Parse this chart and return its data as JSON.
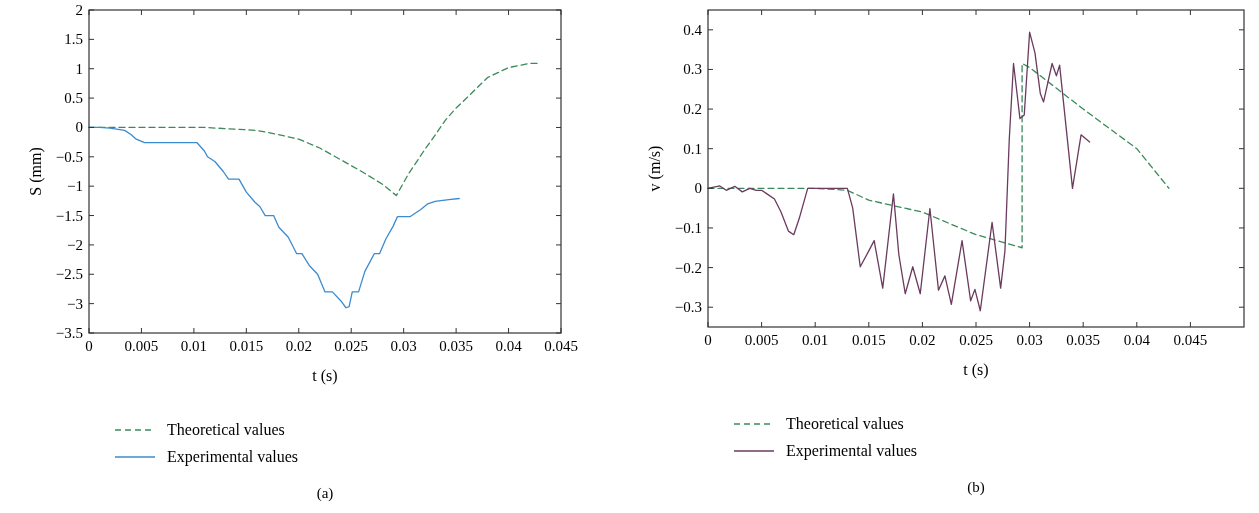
{
  "chart_data": [
    {
      "type": "line",
      "xlabel": "t (s)",
      "ylabel": "S (mm)",
      "xlim": [
        0,
        0.045
      ],
      "xticks": [
        0,
        0.005,
        0.01,
        0.015,
        0.02,
        0.025,
        0.03,
        0.035,
        0.04,
        0.045
      ],
      "ylim": [
        -3.5,
        2
      ],
      "yticks": [
        -3.5,
        -3,
        -2.5,
        -2,
        -1.5,
        -1,
        -0.5,
        0,
        0.5,
        1,
        1.5,
        2
      ],
      "grid": false,
      "legend": "bottom",
      "annotations": [
        "(a)"
      ],
      "series": [
        {
          "name": "Theoretical values",
          "color": "#3a8a5a",
          "line_style": "dashed",
          "x": [
            0,
            0.005,
            0.011,
            0.013,
            0.016,
            0.018,
            0.02,
            0.022,
            0.024,
            0.026,
            0.028,
            0.0293,
            0.0305,
            0.032,
            0.033,
            0.034,
            0.035,
            0.036,
            0.038,
            0.04,
            0.042,
            0.043
          ],
          "values": [
            0,
            0,
            0,
            -0.02,
            -0.05,
            -0.12,
            -0.2,
            -0.35,
            -0.55,
            -0.75,
            -0.97,
            -1.16,
            -0.78,
            -0.38,
            -0.13,
            0.13,
            0.33,
            0.5,
            0.85,
            1.02,
            1.09,
            1.09
          ]
        },
        {
          "name": "Experimental values",
          "color": "#3b8bd0",
          "line_style": "solid",
          "x": [
            0,
            0.001,
            0.002,
            0.0034,
            0.004,
            0.0045,
            0.0053,
            0.0103,
            0.011,
            0.0113,
            0.012,
            0.0128,
            0.0133,
            0.0143,
            0.015,
            0.0158,
            0.0163,
            0.0168,
            0.0176,
            0.0181,
            0.019,
            0.0198,
            0.0203,
            0.021,
            0.0218,
            0.0225,
            0.0232,
            0.024,
            0.0245,
            0.0248,
            0.0251,
            0.0257,
            0.0263,
            0.0272,
            0.0277,
            0.0283,
            0.029,
            0.0294,
            0.0306,
            0.0316,
            0.0323,
            0.033,
            0.0343,
            0.0353
          ],
          "values": [
            0,
            0,
            -0.01,
            -0.05,
            -0.12,
            -0.2,
            -0.26,
            -0.26,
            -0.4,
            -0.5,
            -0.58,
            -0.75,
            -0.88,
            -0.88,
            -1.1,
            -1.27,
            -1.35,
            -1.5,
            -1.5,
            -1.7,
            -1.87,
            -2.15,
            -2.15,
            -2.35,
            -2.5,
            -2.8,
            -2.8,
            -2.95,
            -3.07,
            -3.05,
            -2.8,
            -2.8,
            -2.45,
            -2.15,
            -2.15,
            -1.9,
            -1.68,
            -1.52,
            -1.52,
            -1.4,
            -1.3,
            -1.26,
            -1.23,
            -1.21
          ]
        }
      ]
    },
    {
      "type": "line",
      "xlabel": "t (s)",
      "ylabel": "v (m/s)",
      "xlim": [
        0,
        0.05
      ],
      "xticks": [
        0,
        0.005,
        0.01,
        0.015,
        0.02,
        0.025,
        0.03,
        0.035,
        0.04,
        0.045
      ],
      "ylim": [
        -0.35,
        0.45
      ],
      "yticks": [
        -0.3,
        -0.2,
        -0.1,
        0,
        0.1,
        0.2,
        0.3,
        0.4
      ],
      "grid": false,
      "legend": "bottom",
      "annotations": [
        "(b)"
      ],
      "series": [
        {
          "name": "Theoretical values",
          "color": "#3a8a5a",
          "line_style": "dashed",
          "x": [
            0,
            0.01,
            0.013,
            0.015,
            0.02,
            0.025,
            0.0293,
            0.0293,
            0.03,
            0.035,
            0.04,
            0.043
          ],
          "values": [
            0,
            0,
            -0.005,
            -0.03,
            -0.06,
            -0.117,
            -0.15,
            0.315,
            0.305,
            0.2,
            0.1,
            0
          ]
        },
        {
          "name": "Experimental values",
          "color": "#6b3a5f",
          "line_style": "solid",
          "x": [
            0,
            0.0011,
            0.0017,
            0.0025,
            0.0032,
            0.0039,
            0.0045,
            0.005,
            0.0055,
            0.0062,
            0.0068,
            0.0075,
            0.008,
            0.0085,
            0.0093,
            0.013,
            0.0135,
            0.0142,
            0.015,
            0.0155,
            0.0163,
            0.0173,
            0.0178,
            0.0184,
            0.0191,
            0.0198,
            0.0207,
            0.0215,
            0.0221,
            0.0227,
            0.0237,
            0.0245,
            0.0249,
            0.0254,
            0.0265,
            0.0273,
            0.0277,
            0.0281,
            0.0285,
            0.0291,
            0.0295,
            0.03,
            0.0305,
            0.031,
            0.0313,
            0.0321,
            0.0325,
            0.0328,
            0.034,
            0.0348,
            0.0356
          ],
          "values": [
            0,
            0.006,
            -0.005,
            0.005,
            -0.009,
            0,
            -0.005,
            -0.005,
            -0.014,
            -0.027,
            -0.059,
            -0.108,
            -0.117,
            -0.077,
            0,
            0,
            -0.05,
            -0.198,
            -0.158,
            -0.132,
            -0.252,
            -0.014,
            -0.167,
            -0.266,
            -0.198,
            -0.266,
            -0.051,
            -0.257,
            -0.221,
            -0.293,
            -0.132,
            -0.284,
            -0.255,
            -0.309,
            -0.086,
            -0.252,
            -0.158,
            0.122,
            0.315,
            0.176,
            0.185,
            0.394,
            0.342,
            0.239,
            0.218,
            0.315,
            0.284,
            0.311,
            0,
            0.135,
            0.117
          ]
        }
      ]
    }
  ]
}
